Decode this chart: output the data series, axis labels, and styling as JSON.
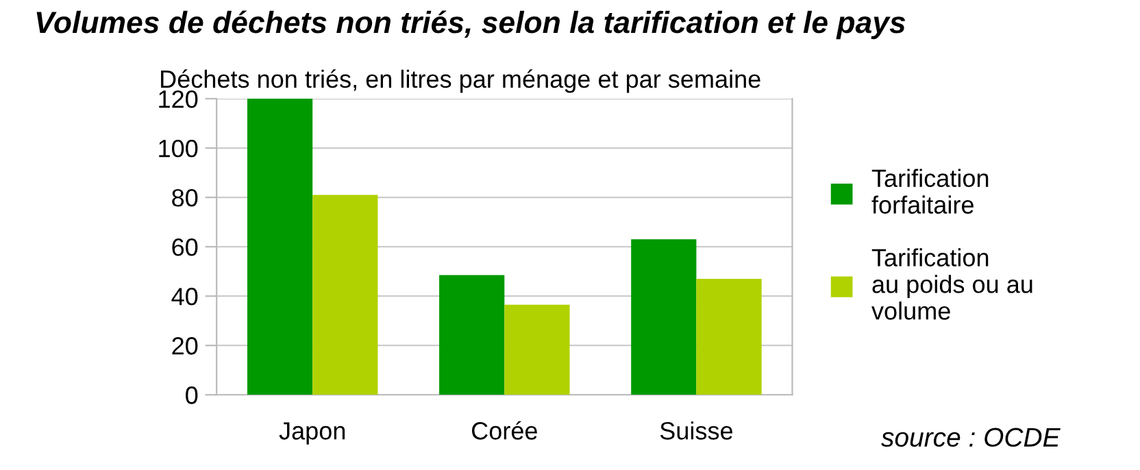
{
  "chart_data": {
    "type": "bar",
    "title": "Volumes de déchets non triés, selon la tarification et le pays",
    "ylabel": "Déchets non triés, en litres par ménage et par semaine",
    "categories": [
      "Japon",
      "Corée",
      "Suisse"
    ],
    "series": [
      {
        "name": "Tarification forfaitaire",
        "color": "#009900",
        "values": [
          120,
          48.5,
          63
        ]
      },
      {
        "name": "Tarification au poids ou au volume",
        "color": "#b0d200",
        "values": [
          81,
          36.5,
          47
        ]
      }
    ],
    "ylim": [
      0,
      120
    ],
    "yticks": [
      0,
      20,
      40,
      60,
      80,
      100,
      120
    ],
    "grid": "y",
    "legend": "right",
    "annotations": [
      "source : OCDE"
    ]
  }
}
